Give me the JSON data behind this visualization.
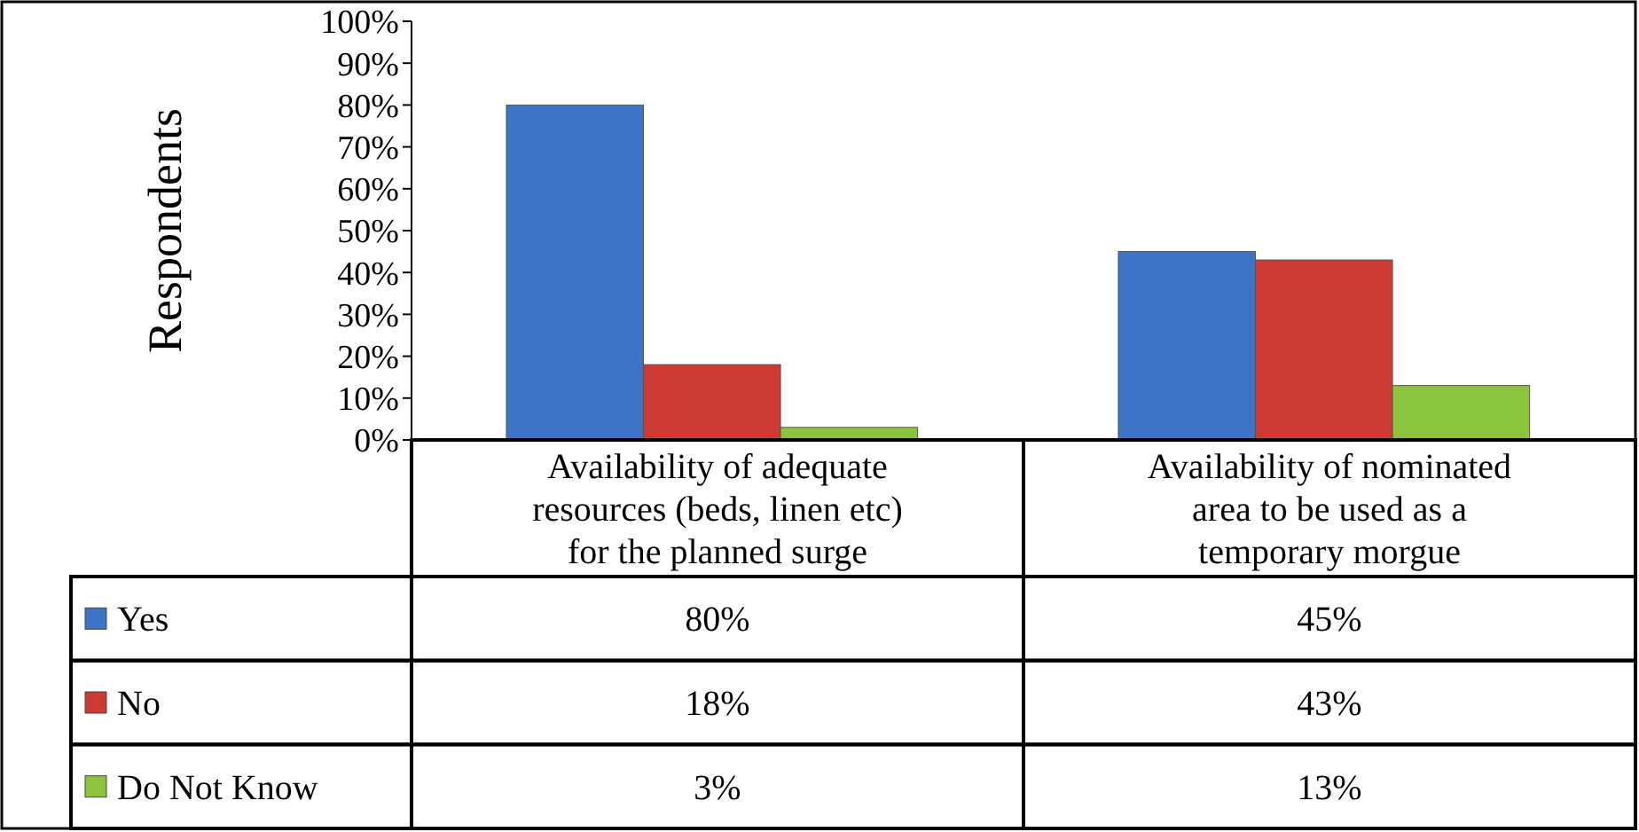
{
  "chart_data": {
    "type": "bar",
    "ylabel": "Respondents",
    "categories": [
      "Availability of adequate resources (beds, linen etc) for the planned surge",
      "Availability of nominated area to be used as a temporary morgue"
    ],
    "series": [
      {
        "name": "Yes",
        "color": "#3d74c6",
        "values": [
          80,
          45
        ],
        "value_labels": [
          "80%",
          "45%"
        ]
      },
      {
        "name": "No",
        "color": "#cc3a33",
        "values": [
          18,
          43
        ],
        "value_labels": [
          "18%",
          "43%"
        ]
      },
      {
        "name": "Do Not Know",
        "color": "#8cc43e",
        "values": [
          3,
          13
        ],
        "value_labels": [
          "3%",
          "13%"
        ]
      }
    ],
    "ylim": [
      0,
      100
    ],
    "yticks": [
      {
        "value": 0,
        "label": "0%"
      },
      {
        "value": 10,
        "label": "10%"
      },
      {
        "value": 20,
        "label": "20%"
      },
      {
        "value": 30,
        "label": "30%"
      },
      {
        "value": 40,
        "label": "40%"
      },
      {
        "value": 50,
        "label": "50%"
      },
      {
        "value": 60,
        "label": "60%"
      },
      {
        "value": 70,
        "label": "70%"
      },
      {
        "value": 80,
        "label": "80%"
      },
      {
        "value": 90,
        "label": "90%"
      },
      {
        "value": 100,
        "label": "100%"
      }
    ],
    "legend": "bottom left"
  }
}
